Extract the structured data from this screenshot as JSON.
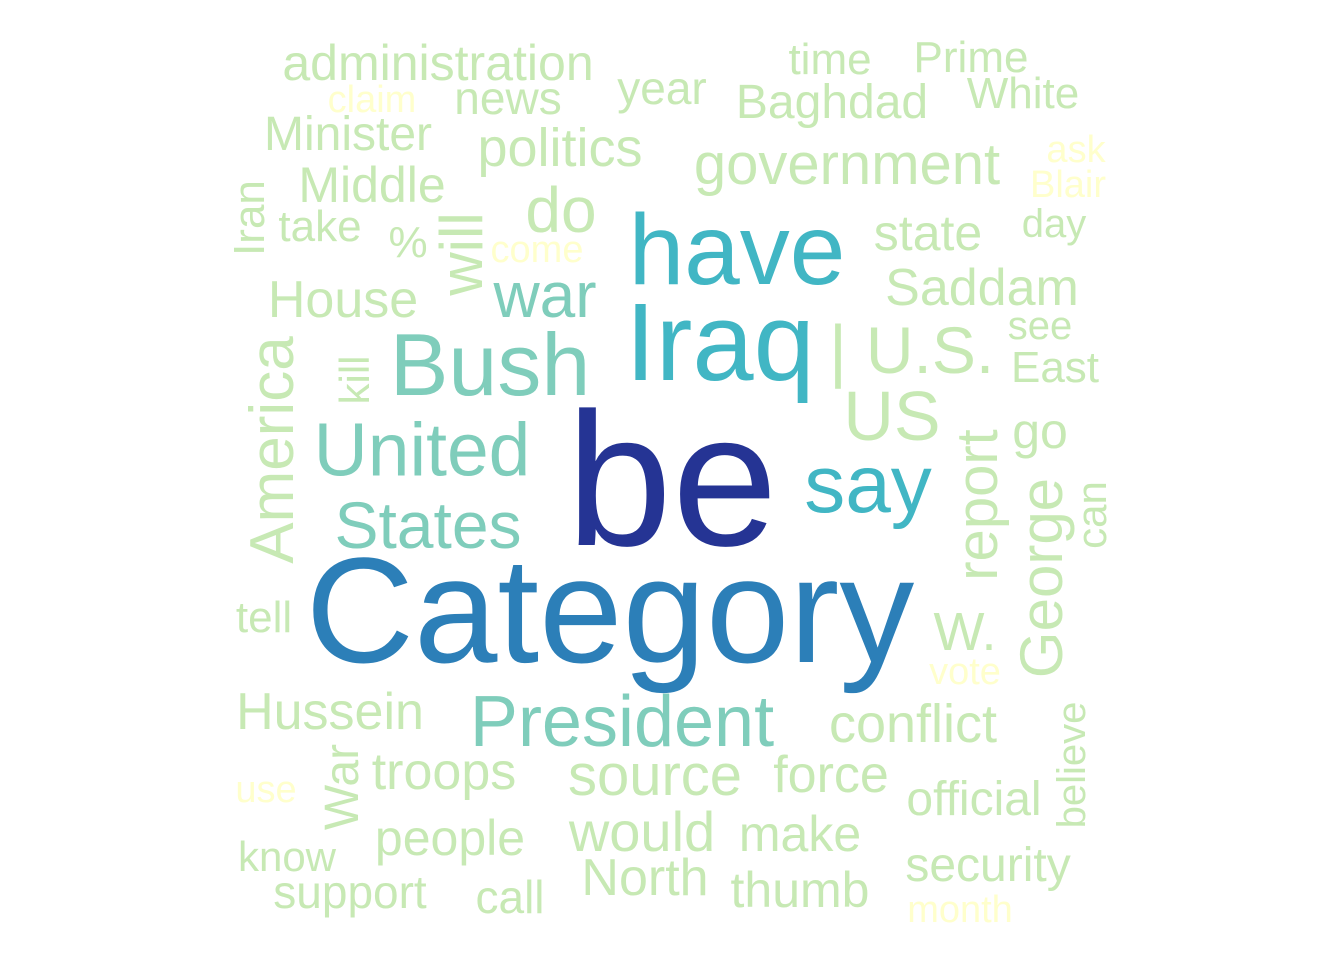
{
  "palette": {
    "c1": "#253494",
    "c2": "#2c7fb8",
    "c3": "#41b6c4",
    "c4": "#7fcdbb",
    "c5": "#c7e9b4",
    "c6": "#ffffcc"
  },
  "words": [
    {
      "text": "be",
      "tier": "c1"
    },
    {
      "text": "Category",
      "tier": "c2"
    },
    {
      "text": "have",
      "tier": "c3"
    },
    {
      "text": "Iraq",
      "tier": "c3"
    },
    {
      "text": "say",
      "tier": "c3"
    },
    {
      "text": "Bush",
      "tier": "c4"
    },
    {
      "text": "United",
      "tier": "c4"
    },
    {
      "text": "States",
      "tier": "c4"
    },
    {
      "text": "President",
      "tier": "c4"
    },
    {
      "text": "war",
      "tier": "c4"
    },
    {
      "text": "administration",
      "tier": "c5"
    },
    {
      "text": "news",
      "tier": "c5"
    },
    {
      "text": "year",
      "tier": "c5"
    },
    {
      "text": "time",
      "tier": "c5"
    },
    {
      "text": "Prime",
      "tier": "c5"
    },
    {
      "text": "White",
      "tier": "c5"
    },
    {
      "text": "Baghdad",
      "tier": "c5"
    },
    {
      "text": "Minister",
      "tier": "c5"
    },
    {
      "text": "politics",
      "tier": "c5"
    },
    {
      "text": "government",
      "tier": "c5"
    },
    {
      "text": "Middle",
      "tier": "c5"
    },
    {
      "text": "do",
      "tier": "c5"
    },
    {
      "text": "take",
      "tier": "c5"
    },
    {
      "text": "%",
      "tier": "c5"
    },
    {
      "text": "will",
      "tier": "c5"
    },
    {
      "text": "state",
      "tier": "c5"
    },
    {
      "text": "day",
      "tier": "c5"
    },
    {
      "text": "Iran",
      "tier": "c5"
    },
    {
      "text": "Saddam",
      "tier": "c5"
    },
    {
      "text": "House",
      "tier": "c5"
    },
    {
      "text": "see",
      "tier": "c5"
    },
    {
      "text": "|",
      "tier": "c5"
    },
    {
      "text": "U.S.",
      "tier": "c5"
    },
    {
      "text": "East",
      "tier": "c5"
    },
    {
      "text": "kill",
      "tier": "c5"
    },
    {
      "text": "America",
      "tier": "c5"
    },
    {
      "text": "US",
      "tier": "c5"
    },
    {
      "text": "go",
      "tier": "c5"
    },
    {
      "text": "report",
      "tier": "c5"
    },
    {
      "text": "George",
      "tier": "c5"
    },
    {
      "text": "can",
      "tier": "c5"
    },
    {
      "text": "tell",
      "tier": "c5"
    },
    {
      "text": "W.",
      "tier": "c5"
    },
    {
      "text": "Hussein",
      "tier": "c5"
    },
    {
      "text": "conflict",
      "tier": "c5"
    },
    {
      "text": "War",
      "tier": "c5"
    },
    {
      "text": "troops",
      "tier": "c5"
    },
    {
      "text": "source",
      "tier": "c5"
    },
    {
      "text": "force",
      "tier": "c5"
    },
    {
      "text": "believe",
      "tier": "c5"
    },
    {
      "text": "official",
      "tier": "c5"
    },
    {
      "text": "people",
      "tier": "c5"
    },
    {
      "text": "would",
      "tier": "c5"
    },
    {
      "text": "make",
      "tier": "c5"
    },
    {
      "text": "know",
      "tier": "c5"
    },
    {
      "text": "security",
      "tier": "c5"
    },
    {
      "text": "support",
      "tier": "c5"
    },
    {
      "text": "call",
      "tier": "c5"
    },
    {
      "text": "North",
      "tier": "c5"
    },
    {
      "text": "thumb",
      "tier": "c5"
    },
    {
      "text": "claim",
      "tier": "c6"
    },
    {
      "text": "ask",
      "tier": "c6"
    },
    {
      "text": "Blair",
      "tier": "c6"
    },
    {
      "text": "come",
      "tier": "c6"
    },
    {
      "text": "vote",
      "tier": "c6"
    },
    {
      "text": "use",
      "tier": "c6"
    },
    {
      "text": "month",
      "tier": "c6"
    }
  ]
}
